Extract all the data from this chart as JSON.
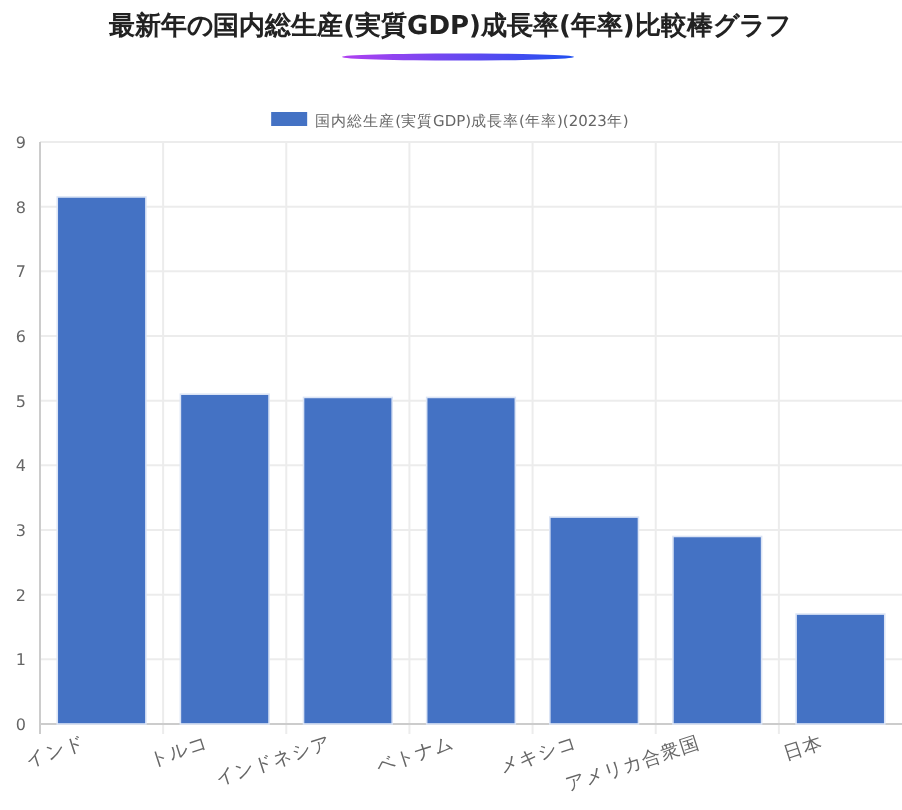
{
  "chart_data": {
    "type": "bar",
    "title": "最新年の国内総生産(実質GDP)成長率(年率)比較棒グラフ",
    "categories": [
      "インド",
      "トルコ",
      "インドネシア",
      "ベトナム",
      "メキシコ",
      "アメリカ合衆国",
      "日本"
    ],
    "series": [
      {
        "name": "国内総生産(実質GDP)成長率(年率)(2023年)",
        "color": "#4472c4",
        "values": [
          8.15,
          5.1,
          5.05,
          5.05,
          3.2,
          2.9,
          1.7
        ]
      }
    ],
    "ylim": [
      0,
      9
    ],
    "yticks": [
      0,
      1,
      2,
      3,
      4,
      5,
      6,
      7,
      8,
      9
    ],
    "grid": true,
    "legend": "top"
  }
}
